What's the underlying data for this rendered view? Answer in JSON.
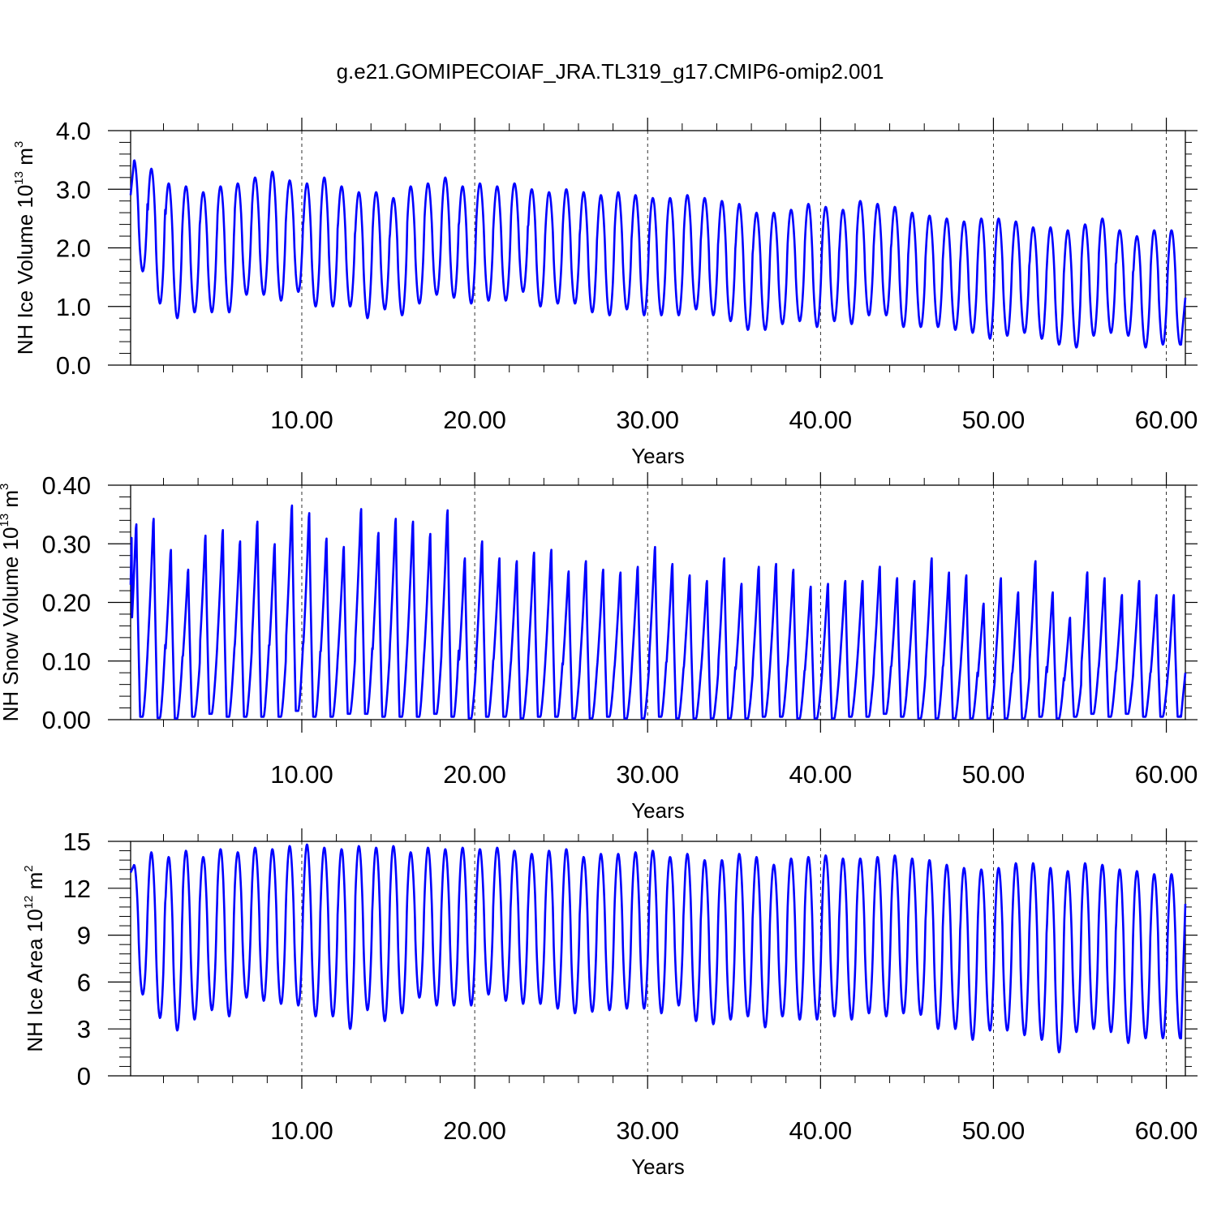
{
  "title": "g.e21.GOMIPECOIAF_JRA.TL319_g17.CMIP6-omip2.001",
  "chart_data": [
    {
      "type": "line",
      "ylabel": "NH Ice Volume 10",
      "ylabel_exp": "13",
      "ylabel_unit": " m",
      "ylabel_unit_exp": "3",
      "xlabel": "Years",
      "xlim": [
        0.1,
        61.1
      ],
      "ylim": [
        0,
        4
      ],
      "x_ticks": [
        "10.00",
        "20.00",
        "30.00",
        "40.00",
        "50.00",
        "60.00"
      ],
      "y_ticks": [
        "0.0",
        "1.0",
        "2.0",
        "3.0",
        "4.0"
      ],
      "grid": "vertical dashed at x ticks",
      "color": "#0000ff",
      "series": [
        {
          "max": [
            3.5,
            3.35,
            3.1,
            3.05,
            2.95,
            3.05,
            3.1,
            3.2,
            3.3,
            3.15,
            3.1,
            3.2,
            3.05,
            2.95,
            2.95,
            2.85,
            3.05,
            3.1,
            3.2,
            3.05,
            3.1,
            3.05,
            3.1,
            3.0,
            2.95,
            3.0,
            2.95,
            2.9,
            2.95,
            2.9,
            2.85,
            2.85,
            2.9,
            2.85,
            2.8,
            2.75,
            2.6,
            2.6,
            2.65,
            2.75,
            2.7,
            2.65,
            2.8,
            2.75,
            2.7,
            2.6,
            2.55,
            2.5,
            2.45,
            2.5,
            2.5,
            2.45,
            2.35,
            2.35,
            2.3,
            2.4,
            2.5,
            2.3,
            2.2,
            2.3
          ],
          "min": [
            1.6,
            1.05,
            0.8,
            0.9,
            0.9,
            0.9,
            1.2,
            1.2,
            1.1,
            1.25,
            1.0,
            1.0,
            1.0,
            0.8,
            0.95,
            0.85,
            1.05,
            1.2,
            1.15,
            1.05,
            1.1,
            1.1,
            1.25,
            1.0,
            1.05,
            1.05,
            0.9,
            0.85,
            0.95,
            0.85,
            0.85,
            0.85,
            0.95,
            0.85,
            0.75,
            0.6,
            0.6,
            0.7,
            0.75,
            0.65,
            0.75,
            0.7,
            0.85,
            0.85,
            0.65,
            0.65,
            0.65,
            0.6,
            0.55,
            0.45,
            0.5,
            0.55,
            0.45,
            0.35,
            0.3,
            0.5,
            0.55,
            0.5,
            0.3,
            0.35
          ],
          "start": 2.9,
          "end": 1.15
        }
      ]
    },
    {
      "type": "line",
      "ylabel": "NH Snow Volume 10",
      "ylabel_exp": "13",
      "ylabel_unit": " m",
      "ylabel_unit_exp": "3",
      "xlabel": "Years",
      "xlim": [
        0.1,
        61.1
      ],
      "ylim": [
        0,
        0.4
      ],
      "x_ticks": [
        "10.00",
        "20.00",
        "30.00",
        "40.00",
        "50.00",
        "60.00"
      ],
      "y_ticks": [
        "0.00",
        "0.10",
        "0.20",
        "0.30",
        "0.40"
      ],
      "grid": "vertical dashed at x ticks",
      "color": "#0000ff",
      "series": [
        {
          "max": [
            0.345,
            0.355,
            0.3,
            0.265,
            0.325,
            0.335,
            0.315,
            0.35,
            0.31,
            0.378,
            0.365,
            0.32,
            0.305,
            0.372,
            0.33,
            0.355,
            0.35,
            0.328,
            0.37,
            0.285,
            0.315,
            0.285,
            0.28,
            0.295,
            0.3,
            0.262,
            0.28,
            0.265,
            0.26,
            0.27,
            0.305,
            0.275,
            0.255,
            0.245,
            0.285,
            0.24,
            0.27,
            0.275,
            0.265,
            0.235,
            0.24,
            0.245,
            0.245,
            0.27,
            0.25,
            0.245,
            0.285,
            0.26,
            0.255,
            0.205,
            0.25,
            0.225,
            0.28,
            0.225,
            0.18,
            0.26,
            0.25,
            0.22,
            0.245,
            0.22
          ],
          "min": [
            0.005,
            0.003,
            0.002,
            0.005,
            0.01,
            0.005,
            0.005,
            0.005,
            0.005,
            0.015,
            0.005,
            0.005,
            0.01,
            0.01,
            0.005,
            0.005,
            0.005,
            0.01,
            0.005,
            0.002,
            0.005,
            0.005,
            0.002,
            0.005,
            0.005,
            0.002,
            0.002,
            0.005,
            0.002,
            0.002,
            0.005,
            0.002,
            0.002,
            0.002,
            0.002,
            0.002,
            0.005,
            0.005,
            0.002,
            0.002,
            0.002,
            0.005,
            0.005,
            0.01,
            0.005,
            0.002,
            0.002,
            0.002,
            0.002,
            0.002,
            0.002,
            0.002,
            0.005,
            0.002,
            0.005,
            0.01,
            0.005,
            0.01,
            0.005,
            0.005
          ],
          "start": 0.23,
          "end": 0.08
        }
      ]
    },
    {
      "type": "line",
      "ylabel": "NH Ice Area 10",
      "ylabel_exp": "12",
      "ylabel_unit": " m",
      "ylabel_unit_exp": "2",
      "xlabel": "Years",
      "xlim": [
        0.1,
        61.1
      ],
      "ylim": [
        0,
        15
      ],
      "x_ticks": [
        "10.00",
        "20.00",
        "30.00",
        "40.00",
        "50.00",
        "60.00"
      ],
      "y_ticks": [
        "0",
        "3",
        "6",
        "9",
        "12",
        "15"
      ],
      "grid": "vertical dashed at x ticks",
      "color": "#0000ff",
      "series": [
        {
          "max": [
            13.5,
            14.3,
            14.0,
            14.4,
            14.0,
            14.5,
            14.3,
            14.6,
            14.5,
            14.7,
            14.8,
            14.6,
            14.5,
            14.7,
            14.6,
            14.7,
            14.3,
            14.6,
            14.5,
            14.6,
            14.5,
            14.6,
            14.4,
            14.2,
            14.4,
            14.5,
            14.0,
            14.2,
            14.2,
            14.3,
            14.4,
            14.0,
            14.2,
            13.8,
            13.8,
            14.2,
            14.0,
            13.5,
            13.9,
            14.0,
            14.1,
            13.9,
            13.9,
            14.0,
            14.1,
            13.9,
            13.8,
            13.5,
            13.3,
            13.2,
            13.3,
            13.6,
            13.6,
            13.3,
            13.1,
            13.6,
            13.5,
            13.2,
            13.1,
            12.9
          ],
          "min": [
            5.2,
            3.7,
            2.9,
            3.6,
            4.2,
            3.8,
            5.0,
            4.8,
            4.6,
            4.5,
            3.8,
            3.8,
            3.0,
            4.2,
            3.5,
            4.0,
            5.0,
            4.5,
            4.5,
            4.5,
            5.2,
            4.8,
            4.6,
            4.6,
            4.3,
            4.0,
            4.1,
            4.2,
            4.3,
            4.3,
            4.0,
            4.5,
            3.5,
            3.3,
            3.6,
            3.8,
            3.1,
            3.8,
            3.6,
            3.6,
            3.8,
            3.6,
            4.0,
            3.8,
            4.0,
            3.9,
            3.0,
            3.0,
            2.3,
            2.9,
            2.9,
            2.6,
            2.3,
            1.5,
            2.8,
            3.0,
            2.8,
            2.1,
            2.4,
            2.4
          ],
          "start": 13.0,
          "end": 11.0
        }
      ]
    }
  ]
}
